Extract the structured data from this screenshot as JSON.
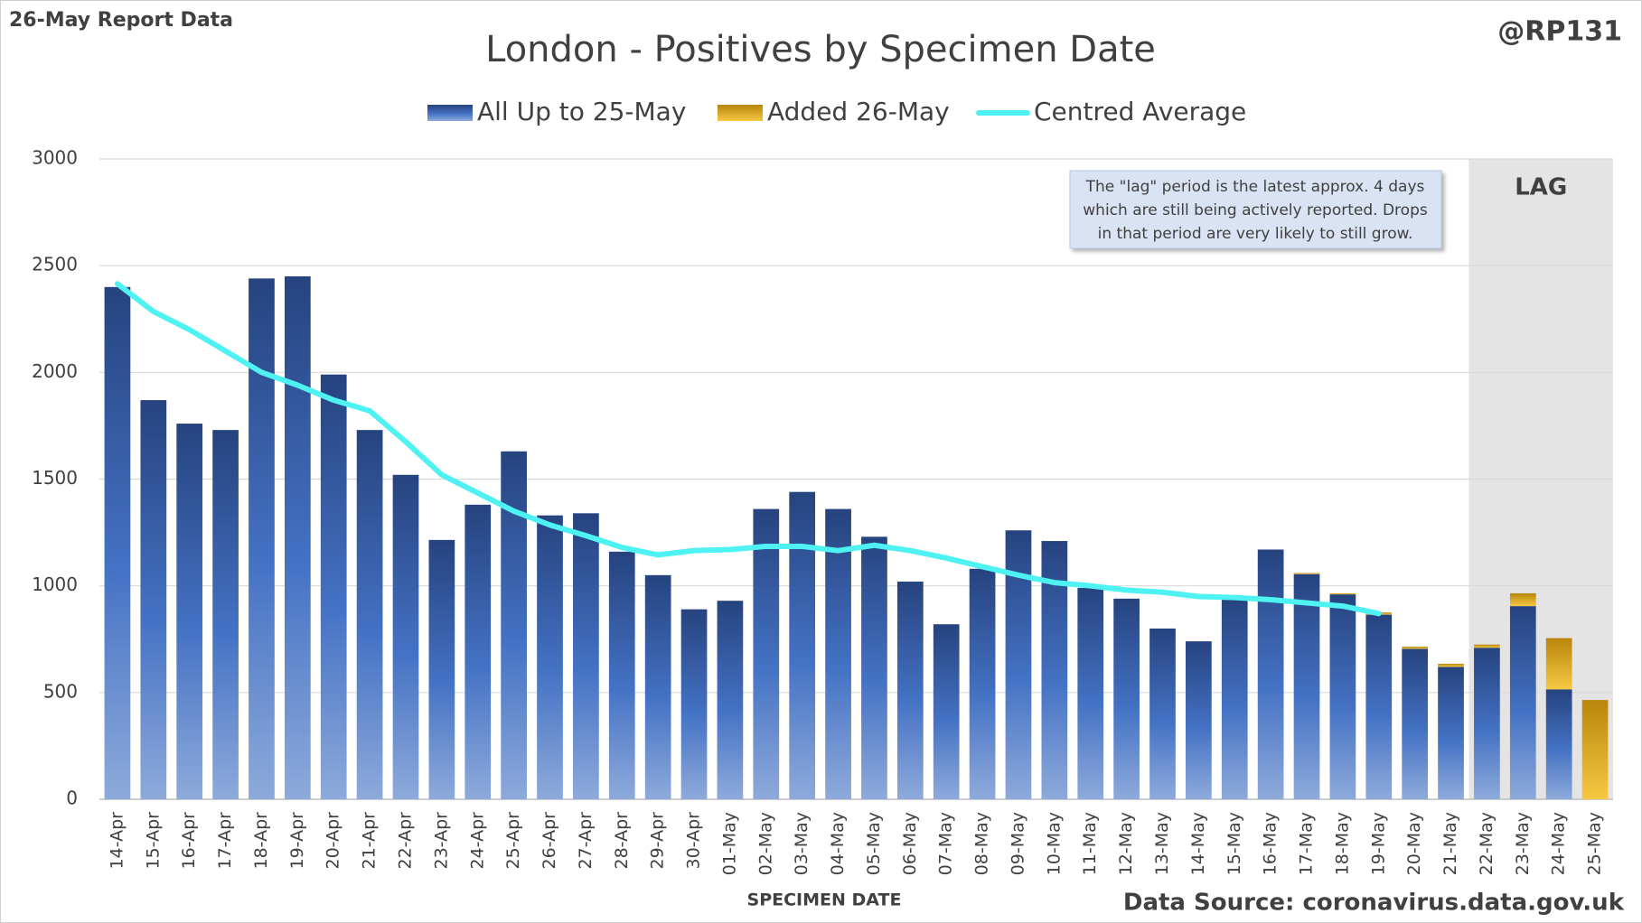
{
  "chart_data": {
    "type": "bar",
    "stacked": true,
    "title": "London - Positives by Specimen Date",
    "report_label": "26-May Report Data",
    "author": "@RP131",
    "source": "Data Source: coronavirus.data.gov.uk",
    "x_label": "SPECIMEN DATE",
    "annotation": [
      "The \"lag\" period is the latest approx. 4 days",
      "which are still being actively reported.  Drops",
      "in that period are very likely to still grow."
    ],
    "lag_label": "LAG",
    "lag_start": "22-May",
    "categories": [
      "14-Apr",
      "15-Apr",
      "16-Apr",
      "17-Apr",
      "18-Apr",
      "19-Apr",
      "20-Apr",
      "21-Apr",
      "22-Apr",
      "23-Apr",
      "24-Apr",
      "25-Apr",
      "26-Apr",
      "27-Apr",
      "28-Apr",
      "29-Apr",
      "30-Apr",
      "01-May",
      "02-May",
      "03-May",
      "04-May",
      "05-May",
      "06-May",
      "07-May",
      "08-May",
      "09-May",
      "10-May",
      "11-May",
      "12-May",
      "13-May",
      "14-May",
      "15-May",
      "16-May",
      "17-May",
      "18-May",
      "19-May",
      "20-May",
      "21-May",
      "22-May",
      "23-May",
      "24-May",
      "25-May"
    ],
    "series": [
      {
        "name": "All Up to 25-May",
        "color": "#2f5597",
        "kind": "bar",
        "values": [
          2400,
          1870,
          1760,
          1730,
          2440,
          2450,
          1990,
          1730,
          1520,
          1215,
          1380,
          1630,
          1330,
          1340,
          1160,
          1050,
          890,
          930,
          1360,
          1440,
          1360,
          1230,
          1020,
          820,
          1080,
          1260,
          1210,
          990,
          940,
          800,
          740,
          940,
          1170,
          1055,
          960,
          865,
          705,
          620,
          710,
          905,
          515,
          0
        ]
      },
      {
        "name": "Added 26-May",
        "color": "#d4a017",
        "kind": "bar",
        "values": [
          0,
          0,
          0,
          0,
          0,
          0,
          0,
          0,
          0,
          0,
          0,
          0,
          0,
          0,
          0,
          0,
          0,
          0,
          0,
          0,
          0,
          0,
          0,
          0,
          0,
          0,
          0,
          0,
          0,
          0,
          0,
          0,
          0,
          5,
          5,
          10,
          10,
          15,
          15,
          60,
          240,
          465
        ]
      },
      {
        "name": "Centred Average",
        "color": "#4ff2f2",
        "kind": "line",
        "values": [
          2415,
          2285,
          2200,
          2100,
          2000,
          1940,
          1870,
          1820,
          1675,
          1520,
          1435,
          1350,
          1285,
          1235,
          1180,
          1145,
          1165,
          1170,
          1185,
          1185,
          1165,
          1190,
          1165,
          1130,
          1090,
          1050,
          1015,
          1000,
          980,
          970,
          950,
          945,
          935,
          920,
          905,
          870,
          null,
          null,
          null,
          null,
          null,
          null
        ]
      }
    ],
    "ylim": [
      0,
      3000
    ],
    "yticks": [
      0,
      500,
      1000,
      1500,
      2000,
      2500,
      3000
    ],
    "grid": true
  }
}
